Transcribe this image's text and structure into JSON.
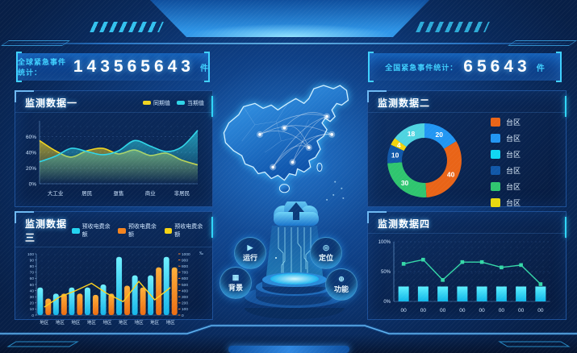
{
  "counters": {
    "left": {
      "label": "全球紧急事件统计：",
      "value": "143565643",
      "unit": "件"
    },
    "right": {
      "label": "全国紧急事件统计：",
      "value": "65643",
      "unit": "件"
    }
  },
  "panels": {
    "p1": {
      "title": "监测数据一",
      "legend": [
        {
          "label": "同期值",
          "color": "#f0d420"
        },
        {
          "label": "当期值",
          "color": "#2fd5e8"
        }
      ]
    },
    "p2": {
      "title": "监测数据二",
      "legend": [
        {
          "label": "台区",
          "color": "#e96417"
        },
        {
          "label": "台区",
          "color": "#2196f3"
        },
        {
          "label": "台区",
          "color": "#0fd7f2"
        },
        {
          "label": "台区",
          "color": "#1057a8"
        },
        {
          "label": "台区",
          "color": "#2fc56f"
        },
        {
          "label": "台区",
          "color": "#e8d80f"
        }
      ]
    },
    "p3": {
      "title": "监测数据三",
      "legend": [
        {
          "label": "预收电费余额",
          "color": "#22d3f0"
        },
        {
          "label": "预收电费余额",
          "color": "#f5841e"
        },
        {
          "label": "预收电费余额",
          "color": "#f5d313"
        }
      ]
    },
    "p4": {
      "title": "监测数据四"
    }
  },
  "center": {
    "buttons": [
      {
        "label": "运行"
      },
      {
        "label": "定位"
      },
      {
        "label": "背景"
      },
      {
        "label": "功能"
      }
    ]
  },
  "chart_data": [
    {
      "type": "area",
      "title": "监测数据一",
      "categories": [
        "大工业",
        "居民",
        "趸售",
        "商业",
        "非居民"
      ],
      "yticks": [
        "0%",
        "20%",
        "40%",
        "60%"
      ],
      "ytick_values": [
        0,
        20,
        40,
        60
      ],
      "ylim": [
        0,
        80
      ],
      "grid": "dotted",
      "legend_position": "top-right",
      "series": [
        {
          "name": "同期值",
          "color": "#f0d420",
          "values": [
            55,
            38,
            45,
            38,
            25
          ],
          "samples": [
            55,
            42,
            34,
            42,
            45,
            38,
            43,
            36,
            39,
            30,
            24
          ]
        },
        {
          "name": "当期值",
          "color": "#2fd5e8",
          "values": [
            28,
            45,
            40,
            52,
            68
          ],
          "samples": [
            28,
            35,
            45,
            41,
            37,
            42,
            55,
            48,
            41,
            47,
            68
          ]
        }
      ]
    },
    {
      "type": "pie",
      "title": "监测数据二",
      "donut": true,
      "slices": [
        {
          "label": "20",
          "value": 20,
          "color": "#2196f3"
        },
        {
          "label": "40",
          "value": 40,
          "color": "#e96417"
        },
        {
          "label": "30",
          "value": 30,
          "color": "#2fc56f"
        },
        {
          "label": "10",
          "value": 10,
          "color": "#1057a8"
        },
        {
          "label": "4",
          "value": 4,
          "color": "#f2d40e"
        },
        {
          "label": "18",
          "value": 18,
          "color": "#4fd4e0"
        }
      ],
      "legend": [
        "台区",
        "台区",
        "台区",
        "台区",
        "台区",
        "台区"
      ],
      "legend_position": "right"
    },
    {
      "type": "bar-line",
      "title": "监测数据三",
      "categories": [
        "地区",
        "地区",
        "地区",
        "地区",
        "地区",
        "地区",
        "地区",
        "地区",
        "地区"
      ],
      "left_axis": {
        "ticks": [
          0,
          10,
          20,
          30,
          40,
          50,
          60,
          70,
          80,
          90,
          100
        ]
      },
      "right_axis": {
        "ticks": [
          0,
          100,
          200,
          300,
          400,
          500,
          600,
          700,
          800,
          900,
          1000
        ],
        "unit": "‰"
      },
      "series": [
        {
          "name": "预收电费余额",
          "type": "bar",
          "color": "#22d3f0",
          "values": [
            45,
            35,
            45,
            45,
            50,
            95,
            65,
            65,
            95
          ]
        },
        {
          "name": "预收电费余额",
          "type": "bar",
          "color": "#f5841e",
          "values": [
            27,
            35,
            35,
            33,
            35,
            48,
            45,
            78,
            78
          ]
        },
        {
          "name": "预收电费余额",
          "type": "line",
          "color": "#ffd21e",
          "values": [
            13,
            30,
            40,
            52,
            35,
            22,
            55,
            25,
            45
          ]
        }
      ]
    },
    {
      "type": "bar-line",
      "title": "监测数据四",
      "categories": [
        "00",
        "00",
        "00",
        "00",
        "00",
        "00",
        "00",
        "00"
      ],
      "yticks": [
        "0%",
        "50%",
        "100%"
      ],
      "ytick_values": [
        0,
        50,
        100
      ],
      "series": [
        {
          "name": "bar",
          "type": "bar",
          "color": "#19e3f7",
          "values": [
            25,
            25,
            25,
            25,
            25,
            25,
            25,
            25
          ]
        },
        {
          "name": "line",
          "type": "line",
          "color": "#35d8a8",
          "values": [
            63,
            70,
            36,
            66,
            66,
            57,
            61,
            29
          ]
        }
      ]
    }
  ]
}
